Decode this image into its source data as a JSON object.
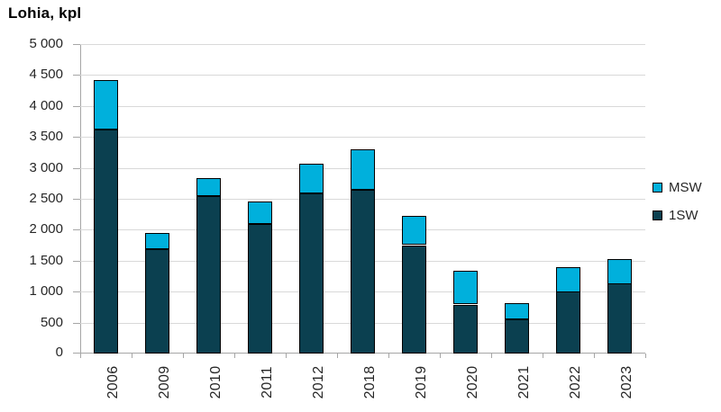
{
  "title": "Lohia, kpl",
  "colors": {
    "msw": "#00b0dc",
    "one_sw": "#0b4050",
    "bar_border": "#000000",
    "gridline": "#d9d9d9",
    "axis": "#a6a6a6",
    "text": "#262626"
  },
  "chart_data": {
    "type": "bar",
    "stacked": true,
    "title": "Lohia, kpl",
    "ylabel": "Lohia, kpl",
    "xlabel": "",
    "grid": true,
    "ylim": [
      0,
      5000
    ],
    "ytick_step": 500,
    "ytick_labels": [
      "0",
      "500",
      "1 000",
      "1 500",
      "2 000",
      "2 500",
      "3 000",
      "3 500",
      "4 000",
      "4 500",
      "5 000"
    ],
    "categories": [
      "2006",
      "2009",
      "2010",
      "2011",
      "2012",
      "2018",
      "2019",
      "2020",
      "2021",
      "2022",
      "2023"
    ],
    "series": [
      {
        "name": "1SW",
        "color": "#0b4050",
        "values": [
          3620,
          1690,
          2550,
          2100,
          2580,
          2650,
          1750,
          790,
          550,
          1000,
          1130
        ]
      },
      {
        "name": "MSW",
        "color": "#00b0dc",
        "values": [
          800,
          260,
          290,
          360,
          480,
          650,
          470,
          540,
          260,
          400,
          400
        ]
      }
    ],
    "totals": [
      4420,
      1950,
      2840,
      2460,
      3060,
      3300,
      2220,
      1330,
      810,
      1400,
      1530
    ],
    "legend": {
      "position": "right",
      "entries": [
        {
          "label": "MSW",
          "color": "#00b0dc"
        },
        {
          "label": "1SW",
          "color": "#0b4050"
        }
      ]
    }
  }
}
